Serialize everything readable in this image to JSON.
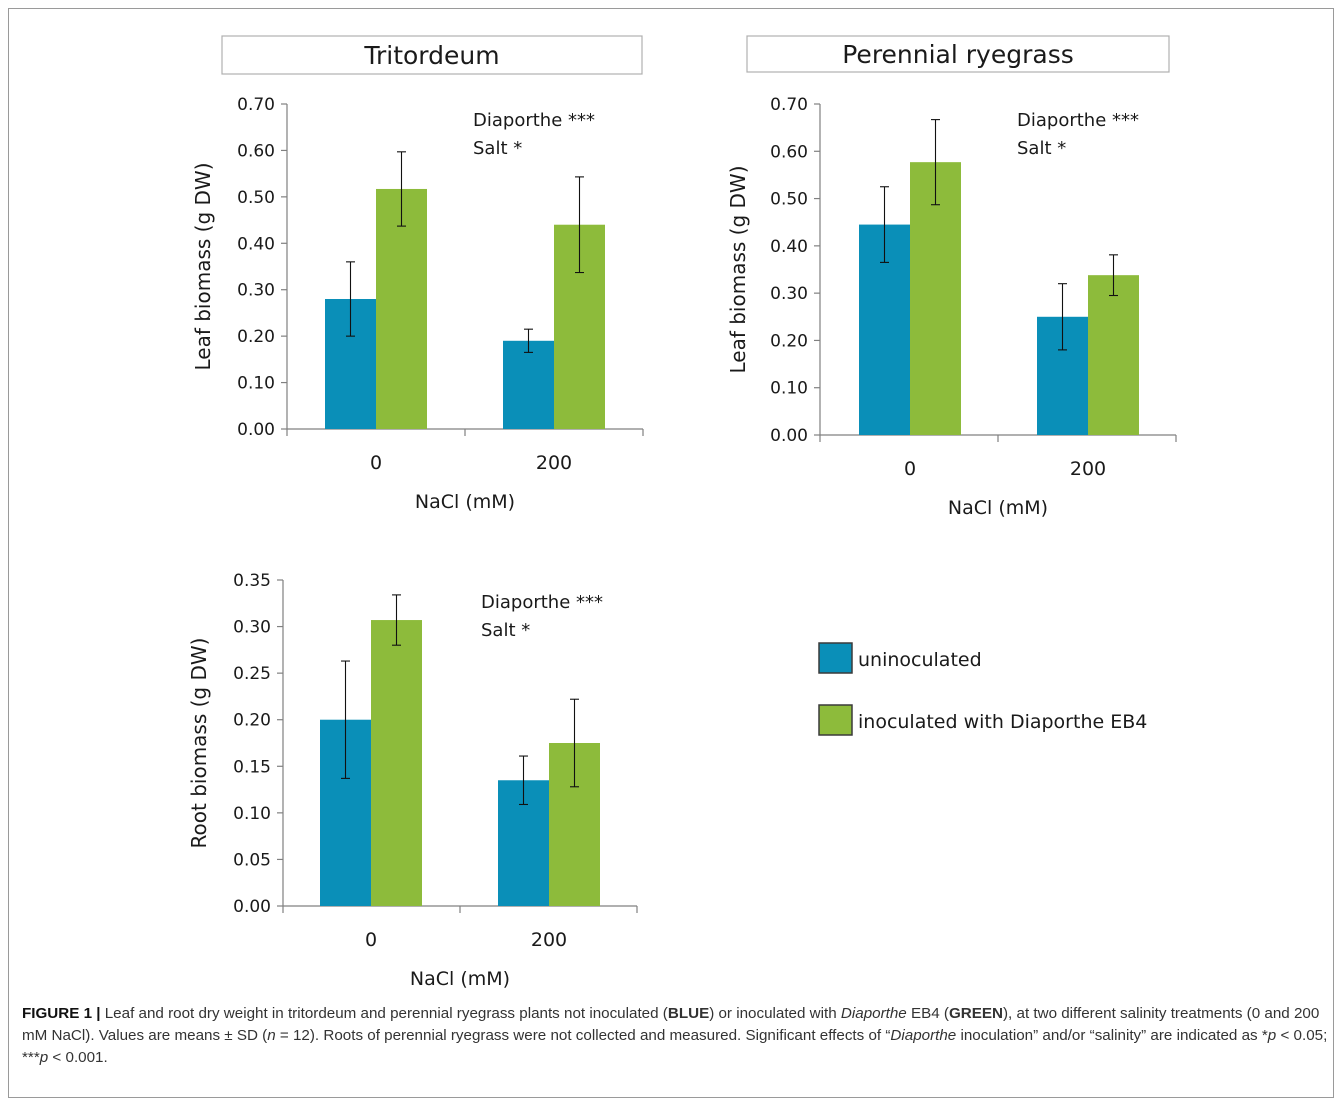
{
  "colors": {
    "uninoculated": "#0a8fb8",
    "inoculated": "#8dbb3b",
    "axis": "#808080",
    "text": "#1a1a1a"
  },
  "legend": {
    "items": [
      {
        "label": "uninoculated",
        "color": "#0a8fb8"
      },
      {
        "label": "inoculated with Diaporthe EB4",
        "color": "#8dbb3b"
      }
    ]
  },
  "chart_data": [
    {
      "type": "bar",
      "title": "Tritordeum",
      "xlabel": "NaCl (mM)",
      "ylabel": "Leaf biomass (g DW)",
      "categories": [
        "0",
        "200"
      ],
      "ylim": [
        0,
        0.7
      ],
      "yticks": [
        "0.00",
        "0.10",
        "0.20",
        "0.30",
        "0.40",
        "0.50",
        "0.60",
        "0.70"
      ],
      "series": [
        {
          "name": "uninoculated",
          "values": [
            0.28,
            0.19
          ],
          "sd": [
            0.08,
            0.025
          ]
        },
        {
          "name": "inoculated with Diaporthe EB4",
          "values": [
            0.517,
            0.44
          ],
          "sd": [
            0.08,
            0.103
          ]
        }
      ],
      "annotations": [
        "Diaporthe ***",
        "Salt *"
      ]
    },
    {
      "type": "bar",
      "title": "Perennial ryegrass",
      "xlabel": "NaCl (mM)",
      "ylabel": "Leaf biomass (g DW)",
      "categories": [
        "0",
        "200"
      ],
      "ylim": [
        0,
        0.7
      ],
      "yticks": [
        "0.00",
        "0.10",
        "0.20",
        "0.30",
        "0.40",
        "0.50",
        "0.60",
        "0.70"
      ],
      "series": [
        {
          "name": "uninoculated",
          "values": [
            0.445,
            0.25
          ],
          "sd": [
            0.08,
            0.07
          ]
        },
        {
          "name": "inoculated with Diaporthe EB4",
          "values": [
            0.577,
            0.338
          ],
          "sd": [
            0.09,
            0.043
          ]
        }
      ],
      "annotations": [
        "Diaporthe ***",
        "Salt *"
      ]
    },
    {
      "type": "bar",
      "title": "",
      "xlabel": "NaCl (mM)",
      "ylabel": "Root biomass (g  DW)",
      "categories": [
        "0",
        "200"
      ],
      "ylim": [
        0,
        0.35
      ],
      "yticks": [
        "0.00",
        "0.05",
        "0.10",
        "0.15",
        "0.20",
        "0.25",
        "0.30",
        "0.35"
      ],
      "series": [
        {
          "name": "uninoculated",
          "values": [
            0.2,
            0.135
          ],
          "sd": [
            0.063,
            0.026
          ]
        },
        {
          "name": "inoculated with Diaporthe EB4",
          "values": [
            0.307,
            0.175
          ],
          "sd": [
            0.027,
            0.047
          ]
        }
      ],
      "annotations": [
        "Diaporthe ***",
        "Salt *"
      ]
    }
  ],
  "caption": {
    "label": "FIGURE 1  |",
    "t1": " Leaf and root dry weight in tritordeum and perennial ryegrass plants not inoculated (",
    "blue": "BLUE",
    "t2": ") or inoculated with ",
    "italic1": "Diaporthe",
    "t3": " EB4 (",
    "green": "GREEN",
    "t4": "), at two different salinity treatments (0 and 200 mM NaCl). Values are means ± SD (",
    "italic_n": "n",
    "t5": " = 12). Roots of perennial ryegrass were not collected and measured. Significant effects of “",
    "italic2": "Diaporthe",
    "t6": " inoculation” and/or “salinity” are indicated as *",
    "italic_p1": "p",
    "t7": " < 0.05; ***",
    "italic_p2": "p",
    "t8": " < 0.001."
  }
}
